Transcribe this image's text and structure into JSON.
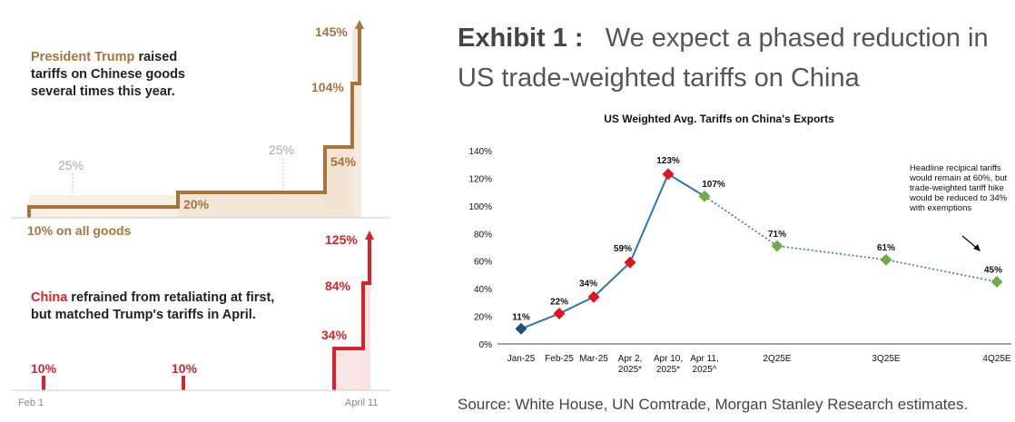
{
  "left_panel": {
    "top_caption_1": "President Trump",
    "top_caption_2": " raised",
    "top_caption_3": "tariffs on Chinese goods",
    "top_caption_4": "several times this year.",
    "bottom_caption_1": "China",
    "bottom_caption_2": " refrained from retaliating at first,",
    "bottom_caption_3": "but matched Trump's tariffs in April.",
    "x_start": "Feb 1",
    "x_end": "April 11"
  },
  "right_panel": {
    "exhibit_label": "Exhibit 1 :",
    "exhibit_title_1": "We expect a phased reduction in",
    "exhibit_title_2": "US trade-weighted tariffs on China",
    "source": "Source: White House, UN Comtrade, Morgan Stanley Research estimates.",
    "annotation": [
      "Headline recipical tariffs",
      "would remain at 60%, but",
      "trade-weighted tariff hike",
      "would be reduced to 34%",
      "with exemptions"
    ]
  },
  "colors": {
    "us_line": "#a8743a",
    "china_line": "#d8232a",
    "ms_line": "#2e75b6",
    "ms_red": "#e0141e",
    "ms_green": "#71ad47",
    "ms_navy": "#1f4e79"
  },
  "chart_data": [
    {
      "type": "line",
      "series": [
        {
          "points": [
            {
              "x": "Feb 1",
              "y": 10,
              "label": "10% on all goods"
            },
            {
              "y": 20,
              "label": "20%"
            },
            {
              "y": 54,
              "label": "54%"
            },
            {
              "y": 104,
              "label": "104%"
            },
            {
              "x": "April 11",
              "y": 145,
              "label": "145%"
            }
          ],
          "proposed_marks": [
            "25%",
            "25%"
          ]
        }
      ]
    },
    {
      "type": "bar",
      "series": [
        {
          "values": [
            10,
            10,
            34,
            84,
            125
          ],
          "labels": [
            "10%",
            "10%",
            "34%",
            "84%",
            "125%"
          ]
        }
      ]
    },
    {
      "type": "line",
      "title": "US Weighted Avg. Tariffs on China's Exports",
      "categories": [
        "Jan-25",
        "Feb-25",
        "Mar-25",
        "Apr 2,\n2025*",
        "Apr 10,\n2025*",
        "Apr 11,\n2025^",
        "2Q25E",
        "3Q25E",
        "4Q25E"
      ],
      "values": [
        11,
        22,
        34,
        59,
        123,
        107,
        71,
        61,
        45
      ],
      "value_labels": [
        "11%",
        "22%",
        "34%",
        "59%",
        "123%",
        "107%",
        "71%",
        "61%",
        "45%"
      ],
      "ylim": [
        0,
        140
      ],
      "yticks": [
        "0%",
        "20%",
        "40%",
        "60%",
        "80%",
        "100%",
        "120%",
        "140%"
      ],
      "solid_through_index": 5,
      "marker_colors": [
        "navy",
        "red",
        "red",
        "red",
        "red",
        "green",
        "green",
        "green",
        "green"
      ]
    }
  ]
}
